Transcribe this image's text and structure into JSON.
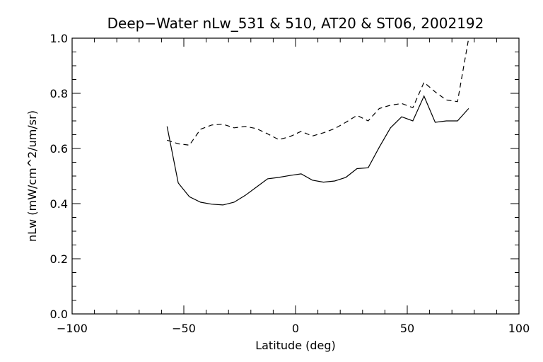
{
  "chart_data": {
    "type": "line",
    "title": "Deep−Water nLw_531 & 510, AT20 & ST06, 2002192",
    "xlabel": "Latitude (deg)",
    "ylabel": "nLw (mW/cm^2/um/sr)",
    "xlim": [
      -100,
      100
    ],
    "ylim": [
      0.0,
      1.0
    ],
    "x_ticks": [
      -100,
      -50,
      0,
      50,
      100
    ],
    "x_tick_labels": [
      "−100",
      "−50",
      "0",
      "50",
      "100"
    ],
    "y_ticks": [
      0.0,
      0.2,
      0.4,
      0.6,
      0.8,
      1.0
    ],
    "y_tick_labels": [
      "0.0",
      "0.2",
      "0.4",
      "0.6",
      "0.8",
      "1.0"
    ],
    "grid": false,
    "legend": "none",
    "series": [
      {
        "style": "solid",
        "x": [
          -57.5,
          -52.5,
          -47.5,
          -42.5,
          -37.5,
          -32.5,
          -27.5,
          -22.5,
          -17.5,
          -12.5,
          -7.5,
          -2.5,
          2.5,
          7.5,
          12.5,
          17.5,
          22.5,
          27.5,
          32.5,
          37.5,
          42.5,
          47.5,
          52.5,
          57.5,
          62.5,
          67.5,
          72.5,
          77.5
        ],
        "y": [
          0.68,
          0.475,
          0.425,
          0.405,
          0.398,
          0.395,
          0.405,
          0.43,
          0.46,
          0.49,
          0.495,
          0.502,
          0.508,
          0.485,
          0.478,
          0.482,
          0.495,
          0.527,
          0.53,
          0.605,
          0.675,
          0.715,
          0.7,
          0.79,
          0.695,
          0.7,
          0.7,
          0.745
        ]
      },
      {
        "style": "dashed",
        "x": [
          -57.5,
          -52.5,
          -47.5,
          -42.5,
          -37.5,
          -32.5,
          -27.5,
          -22.5,
          -17.5,
          -12.5,
          -7.5,
          -2.5,
          2.5,
          7.5,
          12.5,
          17.5,
          22.5,
          27.5,
          32.5,
          37.5,
          42.5,
          47.5,
          52.5,
          57.5,
          62.5,
          67.5,
          72.5,
          77.5
        ],
        "y": [
          0.63,
          0.617,
          0.612,
          0.67,
          0.685,
          0.688,
          0.675,
          0.68,
          0.672,
          0.653,
          0.632,
          0.643,
          0.662,
          0.645,
          0.657,
          0.672,
          0.695,
          0.72,
          0.7,
          0.745,
          0.757,
          0.763,
          0.748,
          0.84,
          0.805,
          0.776,
          0.77,
          1.0
        ]
      }
    ]
  }
}
